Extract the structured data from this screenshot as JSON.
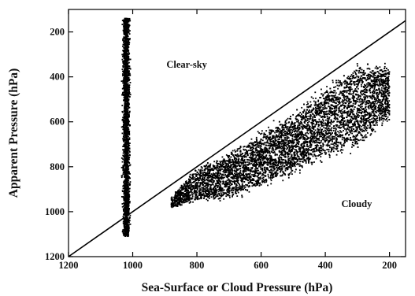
{
  "chart_data": {
    "type": "scatter",
    "xlabel": "Sea-Surface or Cloud Pressure (hPa)",
    "ylabel": "Apparent Pressure (hPa)",
    "xlim": [
      1200,
      150
    ],
    "ylim": [
      100,
      1200
    ],
    "x_ticks": [
      1200,
      1000,
      800,
      600,
      400,
      200
    ],
    "y_ticks": [
      200,
      400,
      600,
      800,
      1000,
      1200
    ],
    "grid": false,
    "reference_line": {
      "from": [
        1200,
        1200
      ],
      "to": [
        150,
        150
      ]
    },
    "marker_color": "#000000",
    "annotations": [
      {
        "text": "Clear-sky",
        "x": 895,
        "y": 360
      },
      {
        "text": "Cloudy",
        "x": 350,
        "y": 980
      }
    ],
    "clusters": [
      {
        "name": "Clear-sky",
        "x_center": 1020,
        "x_spread": 9,
        "y_range": [
          140,
          1110
        ],
        "count": 2600
      },
      {
        "name": "Cloudy",
        "x_range": [
          880,
          200
        ],
        "band_center": [
          [
            880,
            960
          ],
          [
            800,
            880
          ],
          [
            700,
            840
          ],
          [
            600,
            770
          ],
          [
            500,
            700
          ],
          [
            400,
            610
          ],
          [
            300,
            530
          ],
          [
            200,
            470
          ]
        ],
        "band_halfwidth": [
          [
            880,
            25
          ],
          [
            800,
            70
          ],
          [
            700,
            95
          ],
          [
            600,
            110
          ],
          [
            500,
            125
          ],
          [
            400,
            145
          ],
          [
            300,
            170
          ],
          [
            200,
            110
          ]
        ],
        "count": 6500
      }
    ]
  }
}
